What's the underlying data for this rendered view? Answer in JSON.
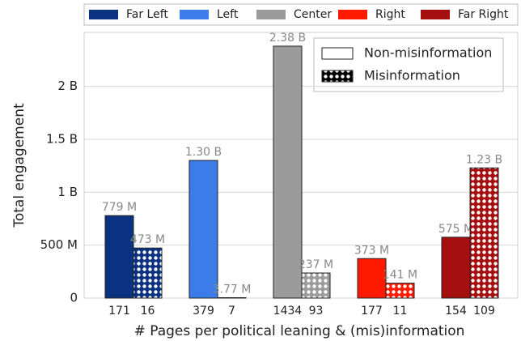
{
  "chart_data": {
    "type": "grouped_bar",
    "categories": [
      "Far Left",
      "Left",
      "Center",
      "Right",
      "Far Right"
    ],
    "colors": [
      "#0b3281",
      "#3b7ce9",
      "#9b9b9b",
      "#ff1a00",
      "#a50f0f"
    ],
    "xlabel": "# Pages per political leaning & (mis)information",
    "ylabel": "Total engagement",
    "ylim": [
      0,
      2510000000
    ],
    "yticks": [
      {
        "value": 0,
        "label": "0"
      },
      {
        "value": 500000000,
        "label": "500 M"
      },
      {
        "value": 1000000000,
        "label": "1 B"
      },
      {
        "value": 1500000000,
        "label": "1.5 B"
      },
      {
        "value": 2000000000,
        "label": "2 B"
      }
    ],
    "grid": true,
    "series": [
      {
        "name": "Non-misinformation",
        "values": [
          779000000,
          1300000000,
          2380000000,
          373000000,
          575000000
        ],
        "value_labels": [
          "779 M",
          "1.30 B",
          "2.38 B",
          "373 M",
          "575 M"
        ],
        "pages": [
          171,
          379,
          1434,
          177,
          154
        ]
      },
      {
        "name": "Misinformation",
        "values": [
          473000000,
          3770000,
          237000000,
          141000000,
          1230000000
        ],
        "value_labels": [
          "473 M",
          "3.77 M",
          "237 M",
          "141 M",
          "1.23 B"
        ],
        "pages": [
          16,
          7,
          93,
          11,
          109
        ]
      }
    ]
  }
}
